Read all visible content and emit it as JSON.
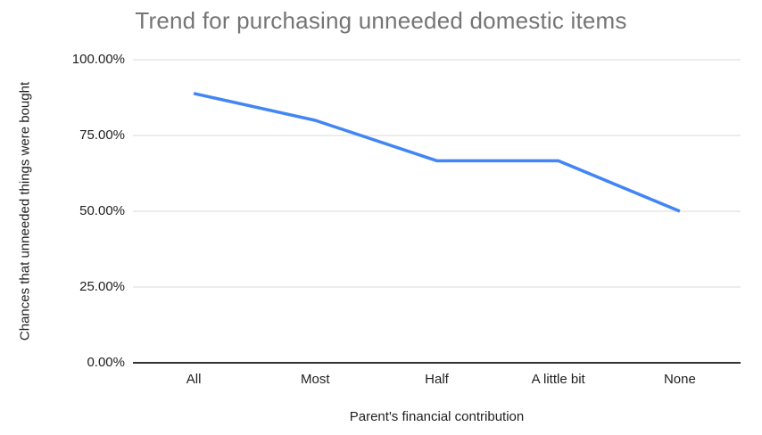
{
  "chart_data": {
    "type": "line",
    "title": "Trend for purchasing unneeded domestic items",
    "xlabel": "Parent's financial contribution",
    "ylabel": "Chances that unneeded things were bought",
    "categories": [
      "All",
      "Most",
      "Half",
      "A little bit",
      "None"
    ],
    "values": [
      88.89,
      80,
      66.67,
      66.67,
      50
    ],
    "ylim": [
      0,
      100
    ],
    "yticks": [
      0,
      25,
      50,
      75,
      100
    ],
    "ytick_labels": [
      "0.00%",
      "25.00%",
      "50.00%",
      "75.00%",
      "100.00%"
    ],
    "grid": true,
    "legend": "none",
    "colors": {
      "line": "#4285f4",
      "gridline": "#e6e6e6",
      "baseline": "#333333",
      "title": "#757575",
      "label": "#1f1f1f",
      "background": "#ffffff"
    }
  }
}
